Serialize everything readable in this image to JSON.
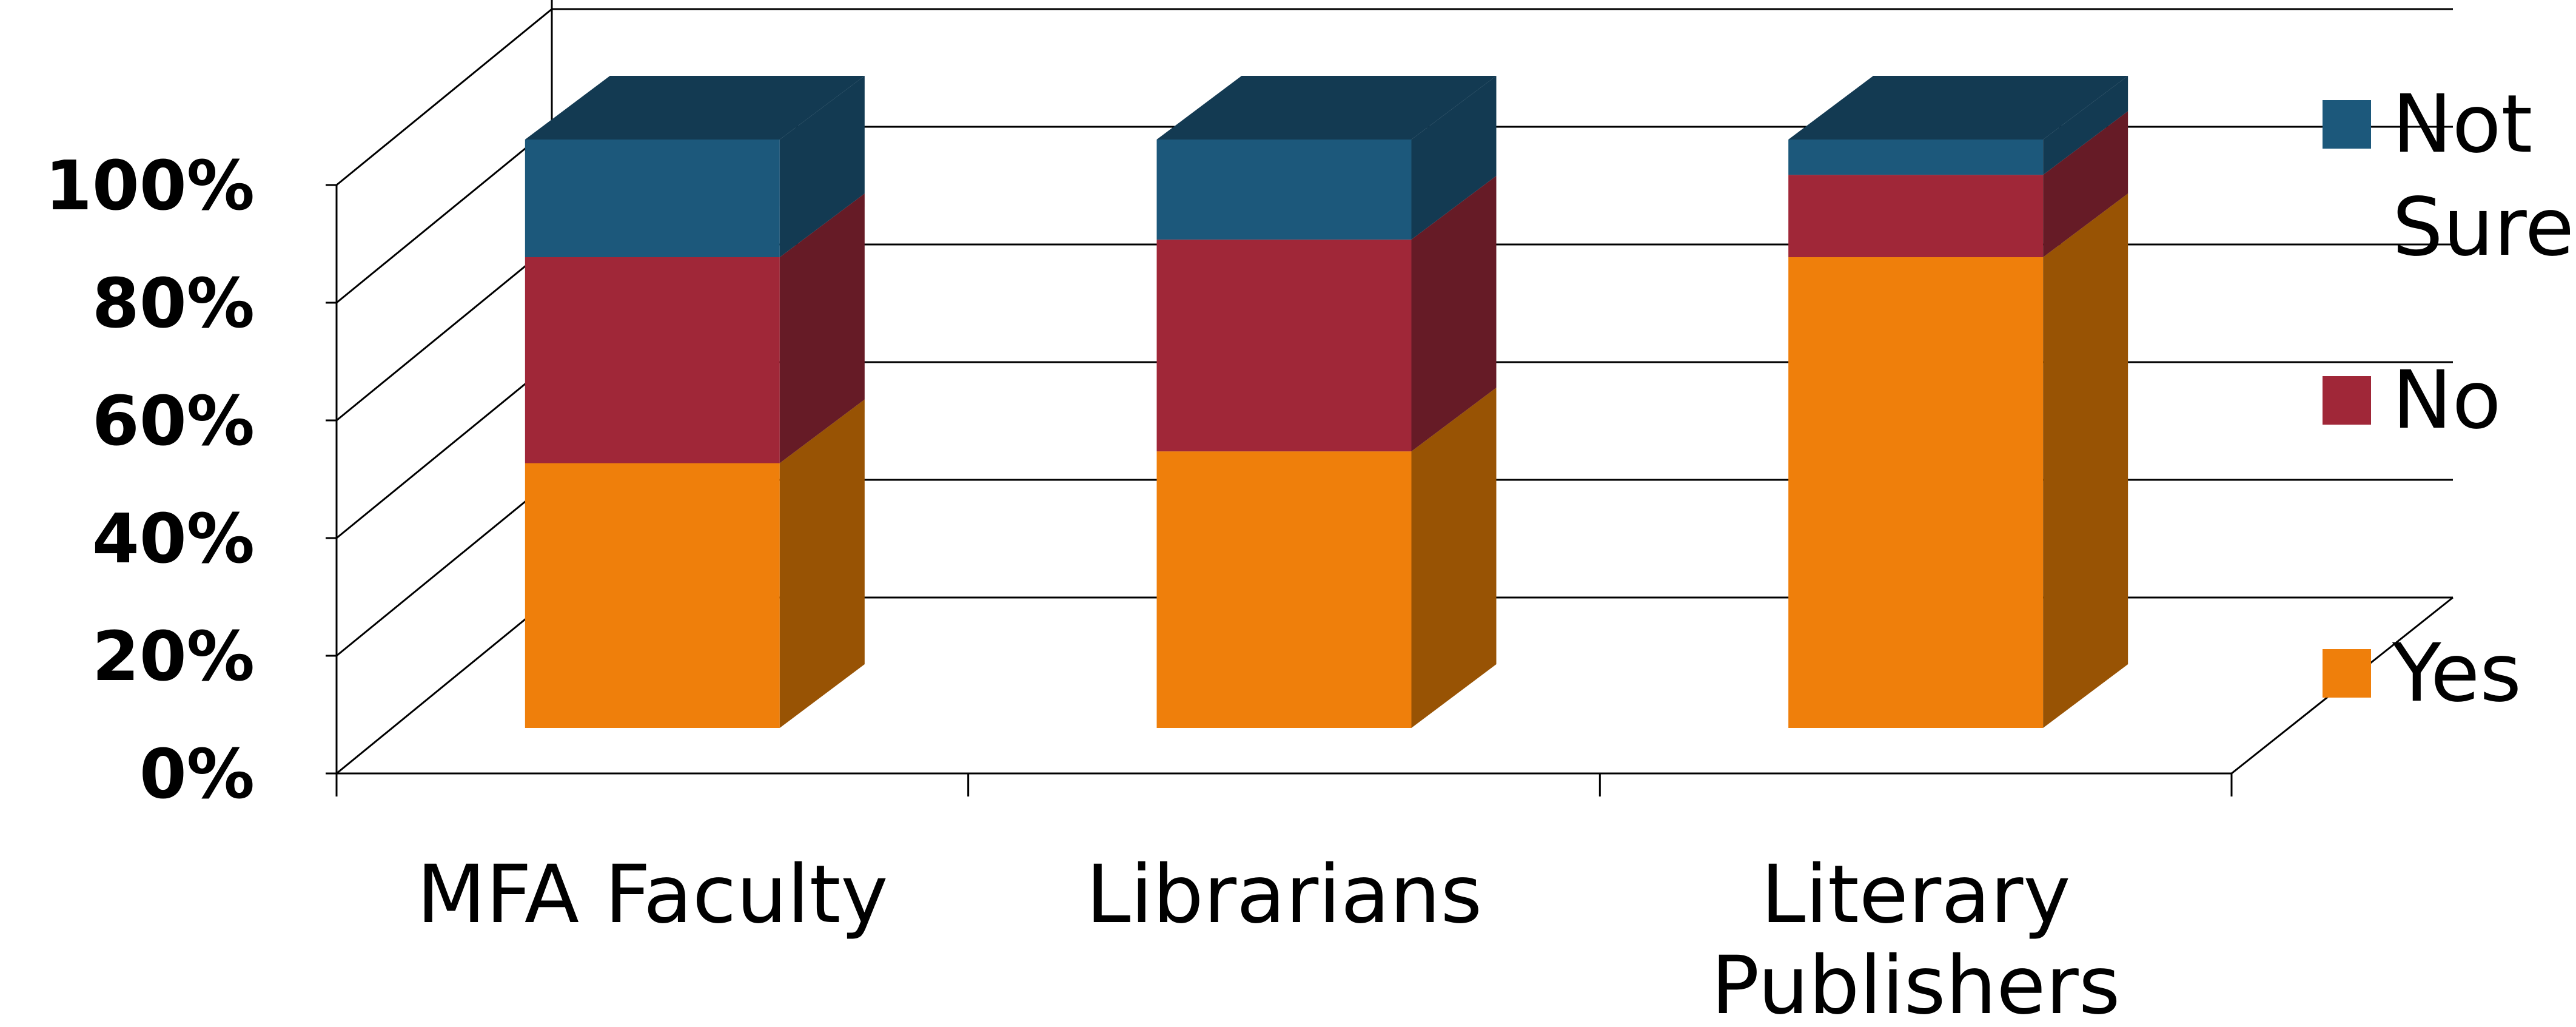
{
  "chart_data": {
    "type": "bar",
    "stacked": true,
    "percent_stacked": true,
    "three_d": true,
    "title": "",
    "xlabel": "",
    "ylabel": "",
    "categories": [
      "MFA Faculty",
      "Librarians",
      "Literary Publishers"
    ],
    "series": [
      {
        "name": "Yes",
        "color": "#ef7f0b",
        "side_color": "#985304",
        "values": [
          45,
          47,
          80
        ]
      },
      {
        "name": "No",
        "color": "#a02738",
        "side_color": "#661b26",
        "values": [
          35,
          36,
          14
        ]
      },
      {
        "name": "Not Sure",
        "color": "#1c587b",
        "side_color": "#133a52",
        "values": [
          20,
          17,
          6
        ]
      }
    ],
    "y_ticks": [
      "0%",
      "20%",
      "40%",
      "60%",
      "80%",
      "100%"
    ],
    "ylim": [
      0,
      100
    ],
    "grid": true,
    "legend_position": "right"
  }
}
